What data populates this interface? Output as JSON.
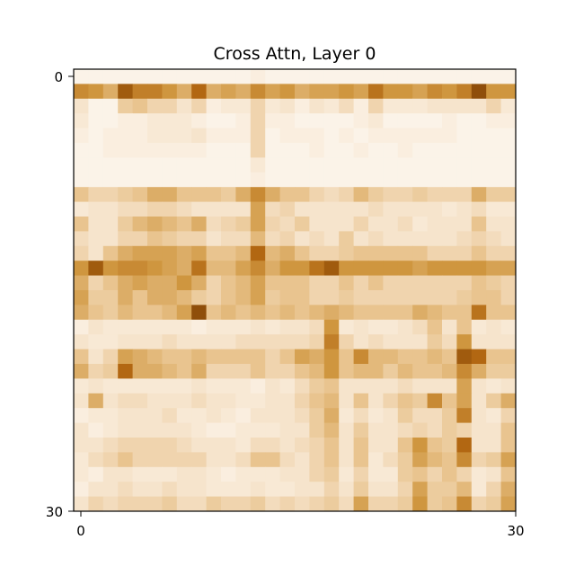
{
  "chart_data": {
    "type": "heatmap",
    "title": "Cross Attn, Layer 0",
    "xlabel": "",
    "ylabel": "",
    "x_ticks": [
      "0",
      "30"
    ],
    "y_ticks": [
      "0",
      "30"
    ],
    "xlim": [
      0,
      30
    ],
    "ylim": [
      30,
      0
    ],
    "grid": false,
    "colormap": [
      "#fdf8f1",
      "#f6e4cc",
      "#e9c48f",
      "#cf963f",
      "#b26712",
      "#6b3502"
    ],
    "rows": 30,
    "cols": 30,
    "values": [
      [
        0.05,
        0.05,
        0.05,
        0.05,
        0.05,
        0.05,
        0.05,
        0.05,
        0.05,
        0.05,
        0.05,
        0.05,
        0.1,
        0.05,
        0.05,
        0.05,
        0.05,
        0.05,
        0.05,
        0.05,
        0.05,
        0.05,
        0.05,
        0.05,
        0.05,
        0.05,
        0.05,
        0.05,
        0.05,
        0.05
      ],
      [
        0.65,
        0.6,
        0.5,
        0.85,
        0.7,
        0.7,
        0.6,
        0.5,
        0.8,
        0.5,
        0.55,
        0.5,
        0.65,
        0.55,
        0.6,
        0.5,
        0.55,
        0.55,
        0.6,
        0.55,
        0.75,
        0.6,
        0.6,
        0.55,
        0.65,
        0.6,
        0.7,
        0.9,
        0.6,
        0.6
      ],
      [
        0.2,
        0.05,
        0.05,
        0.35,
        0.4,
        0.3,
        0.3,
        0.2,
        0.3,
        0.1,
        0.15,
        0.15,
        0.3,
        0.15,
        0.2,
        0.1,
        0.2,
        0.15,
        0.25,
        0.1,
        0.3,
        0.15,
        0.15,
        0.15,
        0.2,
        0.2,
        0.2,
        0.2,
        0.3,
        0.15
      ],
      [
        0.15,
        0.05,
        0.05,
        0.1,
        0.1,
        0.15,
        0.15,
        0.15,
        0.1,
        0.05,
        0.05,
        0.1,
        0.3,
        0.1,
        0.1,
        0.05,
        0.05,
        0.05,
        0.05,
        0.1,
        0.15,
        0.05,
        0.05,
        0.05,
        0.05,
        0.1,
        0.05,
        0.05,
        0.1,
        0.1
      ],
      [
        0.1,
        0.05,
        0.1,
        0.1,
        0.1,
        0.15,
        0.15,
        0.15,
        0.2,
        0.1,
        0.1,
        0.1,
        0.3,
        0.05,
        0.1,
        0.1,
        0.1,
        0.05,
        0.1,
        0.05,
        0.1,
        0.1,
        0.1,
        0.1,
        0.1,
        0.1,
        0.05,
        0.05,
        0.05,
        0.05
      ],
      [
        0.05,
        0.05,
        0.1,
        0.1,
        0.1,
        0.1,
        0.1,
        0.1,
        0.1,
        0.05,
        0.05,
        0.05,
        0.3,
        0.05,
        0.05,
        0.05,
        0.1,
        0.05,
        0.05,
        0.1,
        0.05,
        0.05,
        0.1,
        0.05,
        0.05,
        0.05,
        0.05,
        0.05,
        0.05,
        0.05
      ],
      [
        0.05,
        0.05,
        0.05,
        0.05,
        0.05,
        0.05,
        0.05,
        0.05,
        0.05,
        0.05,
        0.05,
        0.05,
        0.15,
        0.05,
        0.05,
        0.05,
        0.05,
        0.05,
        0.05,
        0.05,
        0.05,
        0.05,
        0.05,
        0.05,
        0.05,
        0.05,
        0.05,
        0.05,
        0.05,
        0.05
      ],
      [
        0.05,
        0.05,
        0.05,
        0.05,
        0.05,
        0.05,
        0.05,
        0.05,
        0.05,
        0.05,
        0.05,
        0.05,
        0.1,
        0.05,
        0.05,
        0.05,
        0.05,
        0.05,
        0.05,
        0.05,
        0.05,
        0.05,
        0.05,
        0.05,
        0.05,
        0.05,
        0.05,
        0.05,
        0.05,
        0.05
      ],
      [
        0.4,
        0.3,
        0.3,
        0.35,
        0.4,
        0.5,
        0.5,
        0.4,
        0.4,
        0.4,
        0.35,
        0.5,
        0.65,
        0.5,
        0.4,
        0.4,
        0.3,
        0.25,
        0.3,
        0.45,
        0.35,
        0.3,
        0.3,
        0.35,
        0.3,
        0.3,
        0.3,
        0.5,
        0.35,
        0.35
      ],
      [
        0.15,
        0.2,
        0.2,
        0.25,
        0.25,
        0.3,
        0.3,
        0.25,
        0.2,
        0.2,
        0.2,
        0.2,
        0.55,
        0.25,
        0.3,
        0.2,
        0.2,
        0.2,
        0.2,
        0.2,
        0.25,
        0.2,
        0.2,
        0.2,
        0.2,
        0.15,
        0.2,
        0.25,
        0.15,
        0.15
      ],
      [
        0.4,
        0.2,
        0.2,
        0.35,
        0.45,
        0.5,
        0.45,
        0.4,
        0.5,
        0.25,
        0.3,
        0.35,
        0.55,
        0.3,
        0.25,
        0.35,
        0.2,
        0.2,
        0.2,
        0.3,
        0.2,
        0.2,
        0.25,
        0.15,
        0.2,
        0.2,
        0.2,
        0.4,
        0.2,
        0.2
      ],
      [
        0.25,
        0.2,
        0.2,
        0.3,
        0.3,
        0.4,
        0.35,
        0.3,
        0.3,
        0.2,
        0.25,
        0.25,
        0.45,
        0.25,
        0.3,
        0.2,
        0.25,
        0.2,
        0.35,
        0.2,
        0.25,
        0.2,
        0.2,
        0.2,
        0.2,
        0.2,
        0.25,
        0.3,
        0.25,
        0.2
      ],
      [
        0.3,
        0.2,
        0.4,
        0.5,
        0.55,
        0.55,
        0.55,
        0.5,
        0.55,
        0.4,
        0.4,
        0.45,
        0.8,
        0.45,
        0.5,
        0.4,
        0.3,
        0.3,
        0.35,
        0.4,
        0.4,
        0.4,
        0.4,
        0.4,
        0.3,
        0.3,
        0.3,
        0.4,
        0.3,
        0.3
      ],
      [
        0.6,
        0.85,
        0.6,
        0.65,
        0.65,
        0.6,
        0.55,
        0.5,
        0.75,
        0.45,
        0.45,
        0.55,
        0.65,
        0.5,
        0.6,
        0.6,
        0.75,
        0.85,
        0.6,
        0.6,
        0.6,
        0.6,
        0.6,
        0.55,
        0.6,
        0.6,
        0.6,
        0.6,
        0.55,
        0.55
      ],
      [
        0.5,
        0.3,
        0.4,
        0.5,
        0.55,
        0.5,
        0.5,
        0.6,
        0.5,
        0.3,
        0.4,
        0.45,
        0.55,
        0.4,
        0.4,
        0.4,
        0.3,
        0.3,
        0.4,
        0.3,
        0.4,
        0.3,
        0.3,
        0.3,
        0.3,
        0.3,
        0.3,
        0.4,
        0.35,
        0.3
      ],
      [
        0.55,
        0.35,
        0.35,
        0.5,
        0.4,
        0.5,
        0.5,
        0.45,
        0.35,
        0.3,
        0.4,
        0.45,
        0.55,
        0.35,
        0.4,
        0.4,
        0.3,
        0.3,
        0.35,
        0.3,
        0.3,
        0.3,
        0.3,
        0.3,
        0.3,
        0.3,
        0.35,
        0.4,
        0.4,
        0.3
      ],
      [
        0.5,
        0.4,
        0.35,
        0.45,
        0.4,
        0.4,
        0.45,
        0.55,
        0.9,
        0.4,
        0.45,
        0.4,
        0.45,
        0.4,
        0.45,
        0.4,
        0.45,
        0.5,
        0.45,
        0.4,
        0.4,
        0.4,
        0.4,
        0.5,
        0.45,
        0.4,
        0.4,
        0.75,
        0.4,
        0.4
      ],
      [
        0.1,
        0.2,
        0.15,
        0.15,
        0.15,
        0.15,
        0.15,
        0.15,
        0.1,
        0.15,
        0.15,
        0.15,
        0.2,
        0.15,
        0.2,
        0.2,
        0.25,
        0.6,
        0.15,
        0.2,
        0.15,
        0.15,
        0.2,
        0.25,
        0.4,
        0.2,
        0.4,
        0.15,
        0.2,
        0.15
      ],
      [
        0.2,
        0.15,
        0.15,
        0.2,
        0.2,
        0.2,
        0.25,
        0.2,
        0.2,
        0.2,
        0.2,
        0.25,
        0.25,
        0.25,
        0.25,
        0.25,
        0.3,
        0.7,
        0.3,
        0.2,
        0.25,
        0.2,
        0.2,
        0.2,
        0.35,
        0.25,
        0.6,
        0.2,
        0.2,
        0.2
      ],
      [
        0.4,
        0.2,
        0.3,
        0.55,
        0.5,
        0.45,
        0.4,
        0.4,
        0.45,
        0.4,
        0.4,
        0.4,
        0.4,
        0.3,
        0.4,
        0.55,
        0.5,
        0.6,
        0.4,
        0.65,
        0.45,
        0.45,
        0.4,
        0.4,
        0.45,
        0.4,
        0.85,
        0.8,
        0.4,
        0.4
      ],
      [
        0.5,
        0.3,
        0.35,
        0.8,
        0.5,
        0.5,
        0.45,
        0.4,
        0.5,
        0.3,
        0.3,
        0.3,
        0.4,
        0.3,
        0.3,
        0.4,
        0.45,
        0.6,
        0.4,
        0.45,
        0.45,
        0.35,
        0.45,
        0.4,
        0.4,
        0.45,
        0.65,
        0.5,
        0.35,
        0.35
      ],
      [
        0.15,
        0.2,
        0.15,
        0.15,
        0.15,
        0.15,
        0.15,
        0.15,
        0.2,
        0.15,
        0.15,
        0.15,
        0.1,
        0.2,
        0.15,
        0.25,
        0.35,
        0.4,
        0.2,
        0.2,
        0.2,
        0.2,
        0.25,
        0.2,
        0.2,
        0.2,
        0.55,
        0.2,
        0.15,
        0.2
      ],
      [
        0.2,
        0.5,
        0.2,
        0.25,
        0.25,
        0.2,
        0.2,
        0.2,
        0.25,
        0.2,
        0.2,
        0.15,
        0.15,
        0.2,
        0.2,
        0.3,
        0.4,
        0.45,
        0.2,
        0.4,
        0.2,
        0.3,
        0.4,
        0.35,
        0.65,
        0.4,
        0.55,
        0.2,
        0.35,
        0.5
      ],
      [
        0.1,
        0.15,
        0.15,
        0.2,
        0.2,
        0.2,
        0.25,
        0.15,
        0.15,
        0.2,
        0.15,
        0.1,
        0.2,
        0.2,
        0.2,
        0.25,
        0.35,
        0.5,
        0.15,
        0.25,
        0.15,
        0.2,
        0.35,
        0.25,
        0.25,
        0.35,
        0.7,
        0.2,
        0.15,
        0.3
      ],
      [
        0.2,
        0.1,
        0.15,
        0.2,
        0.2,
        0.2,
        0.2,
        0.2,
        0.15,
        0.1,
        0.1,
        0.15,
        0.15,
        0.15,
        0.2,
        0.2,
        0.35,
        0.45,
        0.2,
        0.35,
        0.2,
        0.2,
        0.25,
        0.3,
        0.25,
        0.35,
        0.3,
        0.2,
        0.2,
        0.4
      ],
      [
        0.2,
        0.2,
        0.25,
        0.3,
        0.3,
        0.3,
        0.3,
        0.25,
        0.2,
        0.2,
        0.2,
        0.15,
        0.25,
        0.25,
        0.2,
        0.25,
        0.3,
        0.4,
        0.2,
        0.4,
        0.2,
        0.2,
        0.4,
        0.6,
        0.4,
        0.35,
        0.8,
        0.2,
        0.2,
        0.4
      ],
      [
        0.15,
        0.25,
        0.3,
        0.4,
        0.3,
        0.3,
        0.3,
        0.3,
        0.3,
        0.2,
        0.2,
        0.25,
        0.4,
        0.4,
        0.25,
        0.2,
        0.3,
        0.4,
        0.2,
        0.4,
        0.15,
        0.25,
        0.35,
        0.55,
        0.45,
        0.4,
        0.65,
        0.3,
        0.35,
        0.55
      ],
      [
        0.15,
        0.1,
        0.2,
        0.2,
        0.15,
        0.15,
        0.15,
        0.2,
        0.2,
        0.15,
        0.1,
        0.15,
        0.15,
        0.15,
        0.2,
        0.2,
        0.3,
        0.35,
        0.15,
        0.3,
        0.15,
        0.15,
        0.35,
        0.4,
        0.3,
        0.4,
        0.3,
        0.15,
        0.2,
        0.4
      ],
      [
        0.1,
        0.2,
        0.2,
        0.25,
        0.2,
        0.2,
        0.25,
        0.2,
        0.2,
        0.15,
        0.15,
        0.15,
        0.2,
        0.15,
        0.15,
        0.2,
        0.2,
        0.3,
        0.2,
        0.35,
        0.2,
        0.2,
        0.3,
        0.55,
        0.35,
        0.35,
        0.45,
        0.15,
        0.3,
        0.5
      ],
      [
        0.2,
        0.3,
        0.25,
        0.3,
        0.3,
        0.3,
        0.35,
        0.25,
        0.25,
        0.35,
        0.3,
        0.3,
        0.35,
        0.25,
        0.3,
        0.25,
        0.3,
        0.35,
        0.25,
        0.55,
        0.3,
        0.3,
        0.35,
        0.6,
        0.35,
        0.4,
        0.65,
        0.3,
        0.35,
        0.55
      ]
    ]
  }
}
